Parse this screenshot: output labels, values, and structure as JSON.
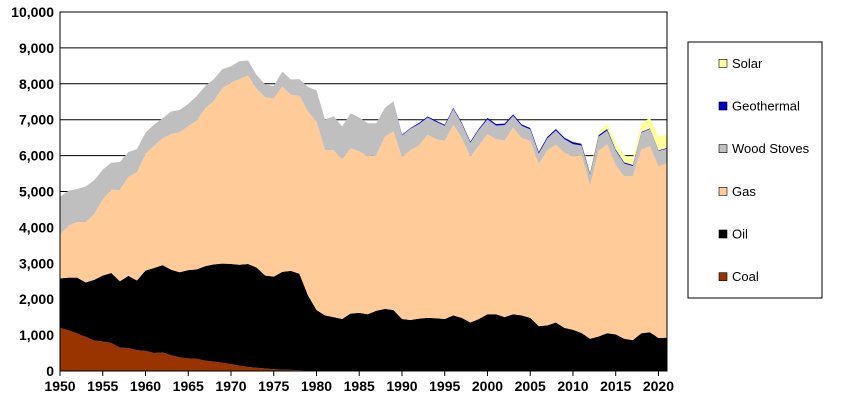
{
  "chart_data": {
    "type": "area",
    "stacked": true,
    "title": "",
    "xlabel": "",
    "ylabel": "",
    "xlim": [
      1950,
      2021
    ],
    "ylim": [
      0,
      10000
    ],
    "x_ticks": [
      1950,
      1955,
      1960,
      1965,
      1970,
      1975,
      1980,
      1985,
      1990,
      1995,
      2000,
      2005,
      2010,
      2015,
      2020
    ],
    "x_tick_labels": [
      "1950",
      "1955",
      "1960",
      "1965",
      "1970",
      "1975",
      "1980",
      "1985",
      "1990",
      "1995",
      "2000",
      "2005",
      "2010",
      "2015",
      "2020"
    ],
    "y_ticks": [
      0,
      1000,
      2000,
      3000,
      4000,
      5000,
      6000,
      7000,
      8000,
      9000,
      10000
    ],
    "y_tick_labels": [
      "0",
      "1,000",
      "2,000",
      "3,000",
      "4,000",
      "5,000",
      "6,000",
      "7,000",
      "8,000",
      "9,000",
      "10,000"
    ],
    "grid": "horizontal",
    "legend_position": "right",
    "x": [
      1950,
      1951,
      1952,
      1953,
      1954,
      1955,
      1956,
      1957,
      1958,
      1959,
      1960,
      1961,
      1962,
      1963,
      1964,
      1965,
      1966,
      1967,
      1968,
      1969,
      1970,
      1971,
      1972,
      1973,
      1974,
      1975,
      1976,
      1977,
      1978,
      1979,
      1980,
      1981,
      1982,
      1983,
      1984,
      1985,
      1986,
      1987,
      1988,
      1989,
      1990,
      1991,
      1992,
      1993,
      1994,
      1995,
      1996,
      1997,
      1998,
      1999,
      2000,
      2001,
      2002,
      2003,
      2004,
      2005,
      2006,
      2007,
      2008,
      2009,
      2010,
      2011,
      2012,
      2013,
      2014,
      2015,
      2016,
      2017,
      2018,
      2019,
      2020,
      2021
    ],
    "series": [
      {
        "name": "Coal",
        "color": "#993300",
        "values": [
          1200,
          1130,
          1050,
          950,
          850,
          820,
          780,
          650,
          640,
          580,
          560,
          500,
          520,
          440,
          380,
          350,
          340,
          290,
          260,
          230,
          190,
          150,
          110,
          90,
          70,
          50,
          40,
          30,
          20,
          10,
          0,
          0,
          0,
          0,
          0,
          0,
          0,
          0,
          0,
          0,
          0,
          0,
          0,
          0,
          0,
          0,
          0,
          0,
          0,
          0,
          0,
          0,
          0,
          0,
          0,
          0,
          0,
          0,
          0,
          0,
          0,
          0,
          0,
          0,
          0,
          0,
          0,
          0,
          0,
          0,
          0,
          0
        ]
      },
      {
        "name": "Oil",
        "color": "#000000",
        "values": [
          1380,
          1470,
          1550,
          1520,
          1690,
          1840,
          1950,
          1850,
          2010,
          1940,
          2240,
          2370,
          2430,
          2380,
          2370,
          2460,
          2490,
          2630,
          2710,
          2760,
          2790,
          2810,
          2870,
          2790,
          2590,
          2580,
          2720,
          2760,
          2690,
          2100,
          1700,
          1550,
          1500,
          1450,
          1600,
          1620,
          1580,
          1680,
          1730,
          1700,
          1450,
          1420,
          1460,
          1480,
          1470,
          1450,
          1550,
          1480,
          1350,
          1450,
          1580,
          1580,
          1500,
          1580,
          1550,
          1480,
          1250,
          1270,
          1350,
          1200,
          1150,
          1060,
          900,
          960,
          1050,
          1020,
          900,
          860,
          1050,
          1080,
          920,
          930
        ]
      },
      {
        "name": "Gas",
        "color": "#FFCC99",
        "values": [
          1220,
          1450,
          1550,
          1680,
          1830,
          2120,
          2320,
          2540,
          2760,
          3010,
          3260,
          3400,
          3530,
          3780,
          3900,
          4010,
          4150,
          4400,
          4560,
          4890,
          5050,
          5170,
          5250,
          4980,
          4970,
          4960,
          5170,
          4900,
          4960,
          5120,
          5250,
          4600,
          4650,
          4450,
          4600,
          4500,
          4400,
          4330,
          4800,
          4980,
          4510,
          4730,
          4830,
          5100,
          4990,
          4960,
          5310,
          5010,
          4620,
          4830,
          5020,
          4880,
          4920,
          5200,
          4940,
          4930,
          4520,
          4880,
          4950,
          4880,
          4820,
          4960,
          4270,
          5170,
          5270,
          4710,
          4520,
          4570,
          5120,
          5180,
          4780,
          4860
        ]
      },
      {
        "name": "Wood Stoves",
        "color": "#BFBFBF",
        "values": [
          1050,
          970,
          920,
          990,
          940,
          830,
          750,
          780,
          690,
          650,
          580,
          590,
          560,
          630,
          620,
          620,
          680,
          620,
          600,
          530,
          460,
          500,
          420,
          380,
          350,
          350,
          410,
          430,
          460,
          680,
          870,
          850,
          950,
          910,
          980,
          940,
          920,
          890,
          800,
          830,
          600,
          600,
          590,
          480,
          480,
          420,
          440,
          400,
          390,
          440,
          410,
          380,
          430,
          330,
          340,
          320,
          290,
          330,
          400,
          380,
          350,
          260,
          300,
          400,
          380,
          410,
          360,
          280,
          470,
          480,
          430,
          400
        ]
      },
      {
        "name": "Geothermal",
        "color": "#0000CC",
        "values": [
          0,
          0,
          0,
          0,
          0,
          0,
          0,
          0,
          0,
          0,
          0,
          0,
          0,
          0,
          0,
          0,
          0,
          0,
          0,
          0,
          0,
          0,
          0,
          0,
          0,
          0,
          0,
          0,
          0,
          0,
          0,
          0,
          0,
          0,
          0,
          0,
          0,
          0,
          0,
          0,
          20,
          20,
          30,
          30,
          30,
          30,
          30,
          30,
          30,
          30,
          40,
          40,
          40,
          40,
          40,
          40,
          40,
          40,
          40,
          40,
          60,
          50,
          40,
          40,
          40,
          30,
          30,
          30,
          20,
          20,
          20,
          20
        ]
      },
      {
        "name": "Solar",
        "color": "#FFFF99",
        "values": [
          0,
          0,
          0,
          0,
          0,
          0,
          0,
          0,
          0,
          0,
          0,
          0,
          0,
          0,
          0,
          0,
          0,
          0,
          0,
          0,
          0,
          0,
          0,
          0,
          0,
          0,
          0,
          0,
          0,
          0,
          0,
          0,
          0,
          0,
          0,
          0,
          0,
          0,
          0,
          0,
          0,
          0,
          0,
          0,
          0,
          0,
          0,
          0,
          0,
          0,
          0,
          0,
          0,
          0,
          0,
          0,
          0,
          0,
          0,
          0,
          40,
          40,
          70,
          90,
          150,
          200,
          200,
          180,
          230,
          290,
          380,
          380
        ]
      }
    ],
    "legend_order": [
      "Solar",
      "Geothermal",
      "Wood Stoves",
      "Gas",
      "Oil",
      "Coal"
    ]
  }
}
